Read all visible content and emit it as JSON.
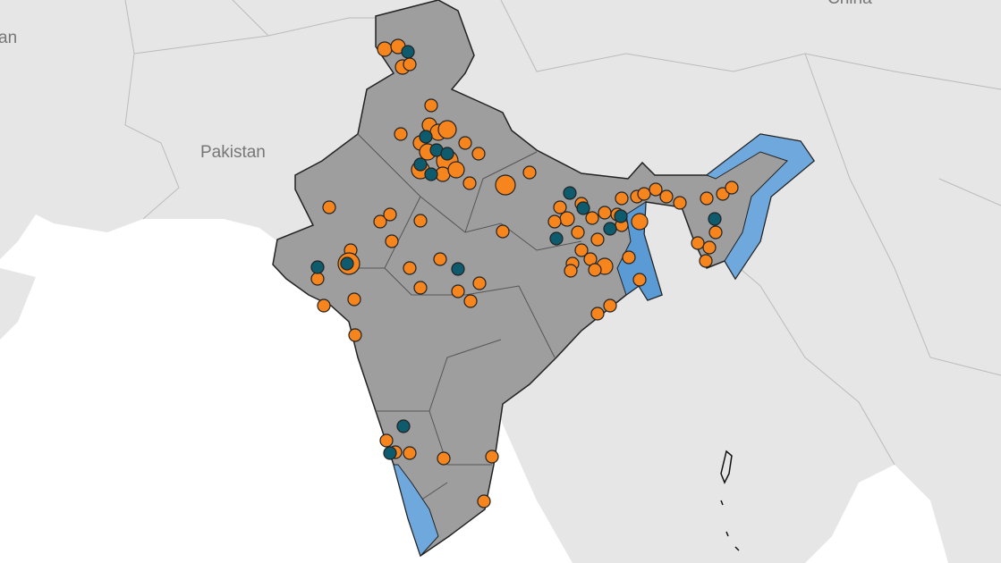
{
  "labels": {
    "afghanistan": "an",
    "pakistan": "Pakistan",
    "china": "China"
  }
}
